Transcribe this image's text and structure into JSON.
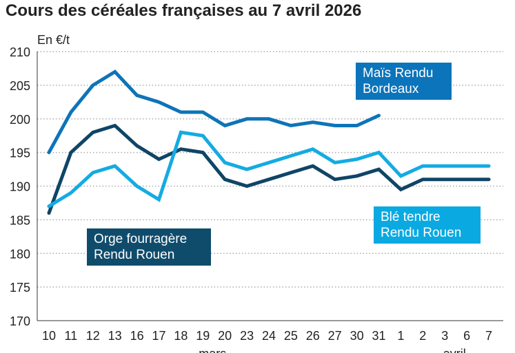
{
  "chart_data": {
    "type": "line",
    "title": "Cours des céréales françaises au 7 avril 2026",
    "ylabel": "En €/t",
    "xlabel": "",
    "ylim": [
      170,
      210
    ],
    "yticks": [
      170,
      175,
      180,
      185,
      190,
      195,
      200,
      205,
      210
    ],
    "grid": true,
    "categories": [
      "10",
      "11",
      "12",
      "13",
      "16",
      "17",
      "18",
      "19",
      "20",
      "23",
      "24",
      "25",
      "26",
      "27",
      "30",
      "31",
      "1",
      "2",
      "3",
      "6",
      "7"
    ],
    "month_labels": [
      {
        "label": "mars",
        "under": "19"
      },
      {
        "label": "avril",
        "under": "3"
      }
    ],
    "series": [
      {
        "name": "Maïs Rendu Bordeaux",
        "color": "#0e74b8",
        "values": [
          195,
          201,
          205,
          207,
          203.5,
          202.5,
          201,
          201,
          199,
          200,
          200,
          199,
          199.5,
          199,
          199,
          200.5,
          null,
          null,
          null,
          null,
          null
        ]
      },
      {
        "name": "Orge fourragère Rendu Rouen",
        "color": "#0f4566",
        "values": [
          186,
          195,
          198,
          199,
          196,
          194,
          195.5,
          195,
          191,
          190,
          191,
          192,
          193,
          191,
          191.5,
          192.5,
          189.5,
          191,
          191,
          191,
          191
        ]
      },
      {
        "name": "Blé tendre Rendu Rouen",
        "color": "#14abe2",
        "values": [
          187,
          189,
          192,
          193,
          190,
          188,
          198,
          197.5,
          193.5,
          192.5,
          193.5,
          194.5,
          195.5,
          193.5,
          194,
          195,
          191.5,
          193,
          193,
          193,
          193
        ]
      }
    ]
  }
}
